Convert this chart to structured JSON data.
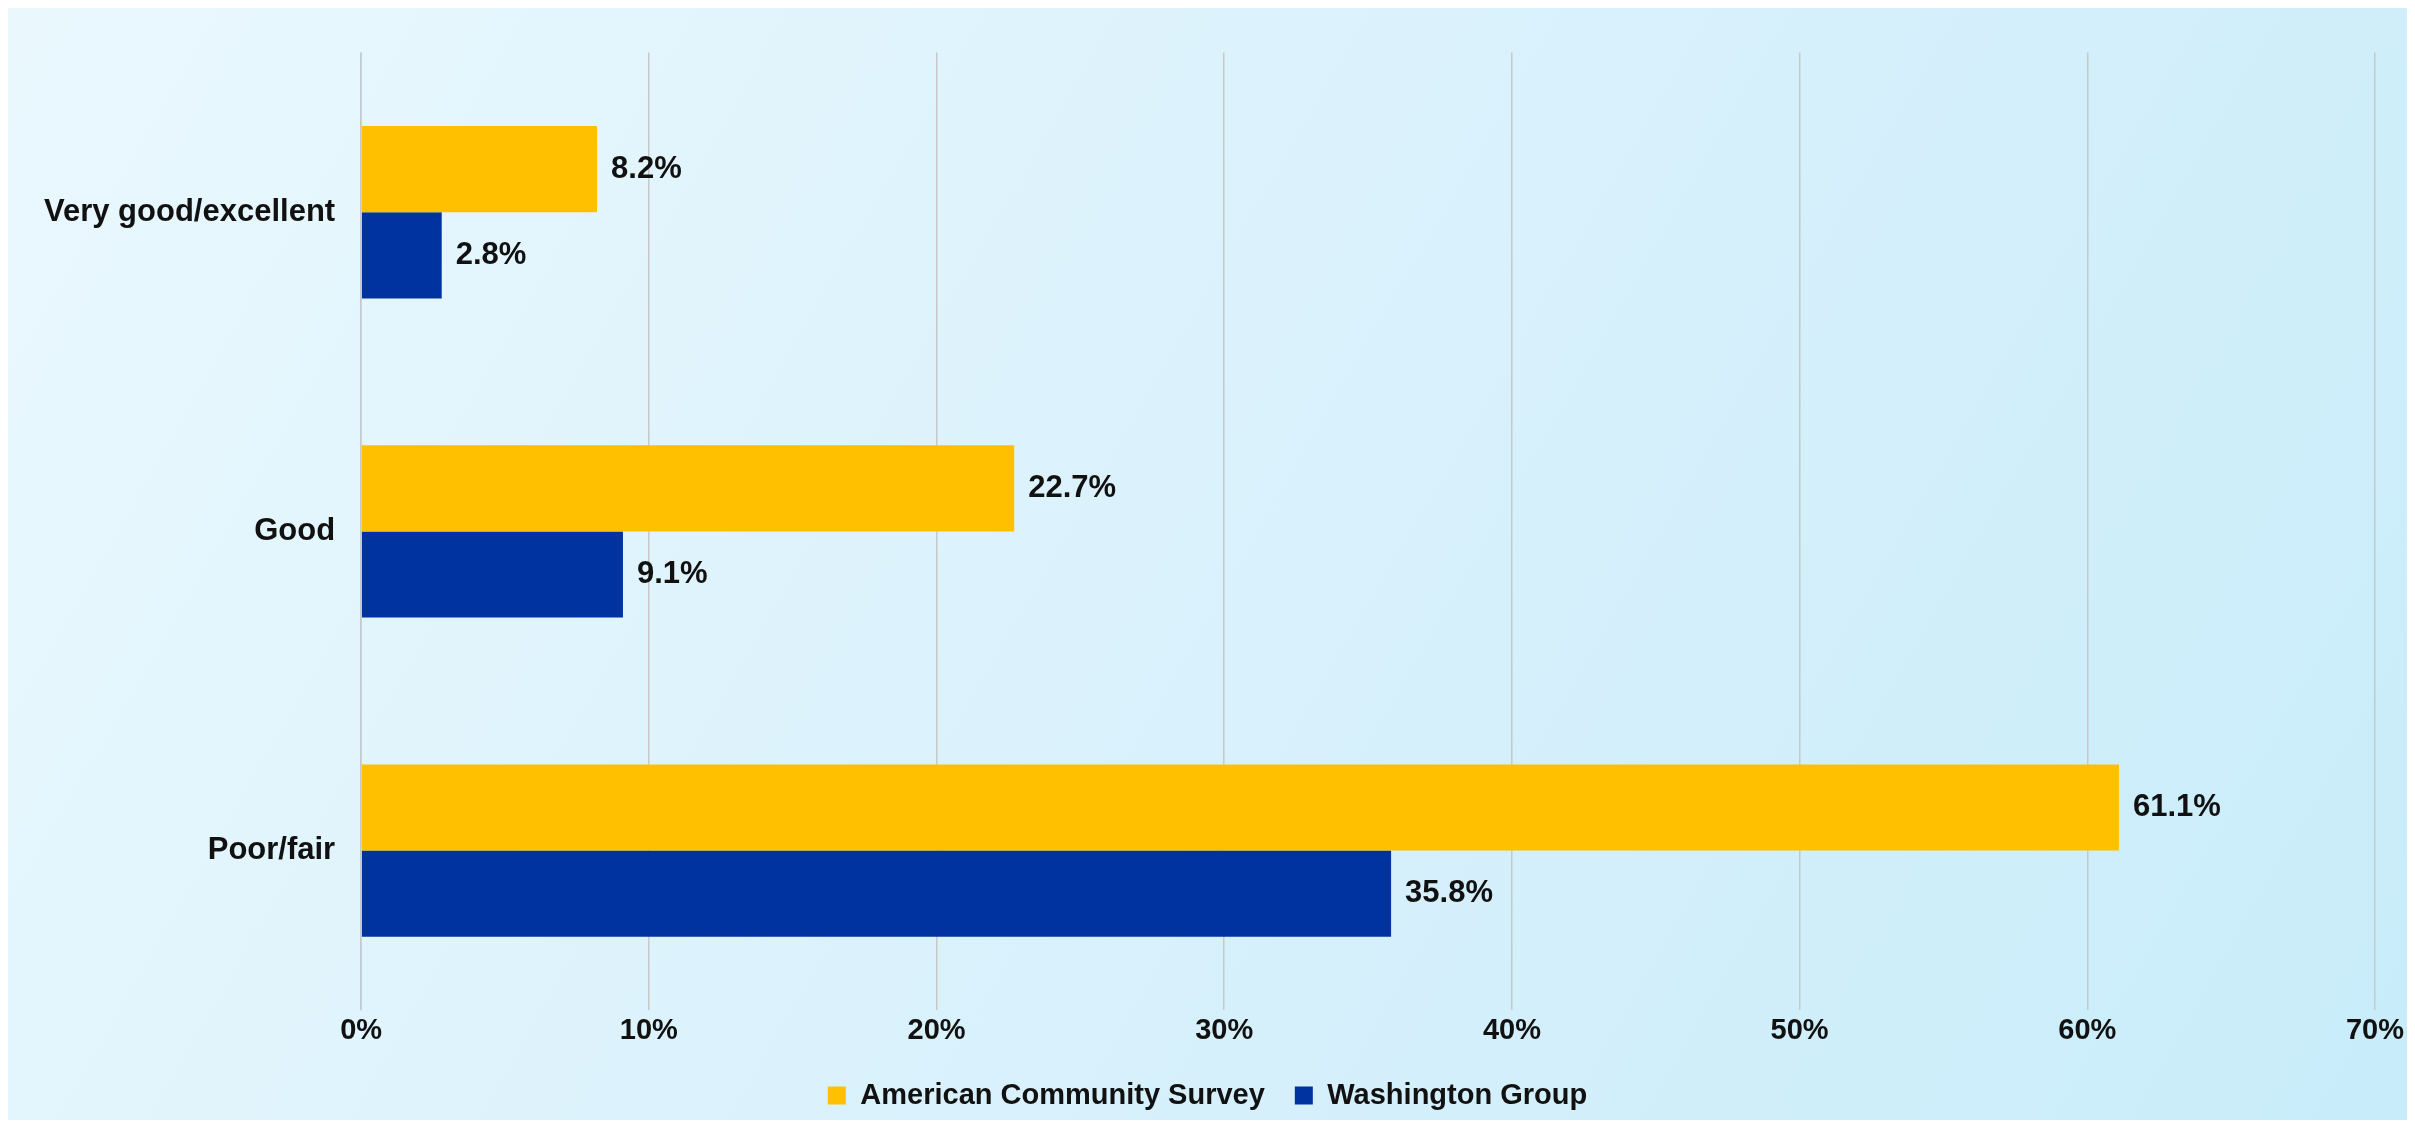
{
  "chart_data": {
    "type": "bar",
    "orientation": "horizontal",
    "categories": [
      "Very good/excellent",
      "Good",
      "Poor/fair"
    ],
    "series": [
      {
        "name": "American Community Survey",
        "color": "#ffc000",
        "values": [
          8.2,
          22.7,
          61.1
        ],
        "value_labels": [
          "8.2%",
          "22.7%",
          "61.1%"
        ]
      },
      {
        "name": "Washington Group",
        "color": "#0033a0",
        "values": [
          2.8,
          9.1,
          35.8
        ],
        "value_labels": [
          "2.8%",
          "9.1%",
          "35.8%"
        ]
      }
    ],
    "xlim": [
      0,
      70
    ],
    "xticks": [
      {
        "value": 0,
        "label": "0%"
      },
      {
        "value": 10,
        "label": "10%"
      },
      {
        "value": 20,
        "label": "20%"
      },
      {
        "value": 30,
        "label": "30%"
      },
      {
        "value": 40,
        "label": "40%"
      },
      {
        "value": 50,
        "label": "50%"
      },
      {
        "value": 60,
        "label": "60%"
      },
      {
        "value": 70,
        "label": "70%"
      }
    ],
    "grid": "x",
    "legend": "bottom"
  }
}
